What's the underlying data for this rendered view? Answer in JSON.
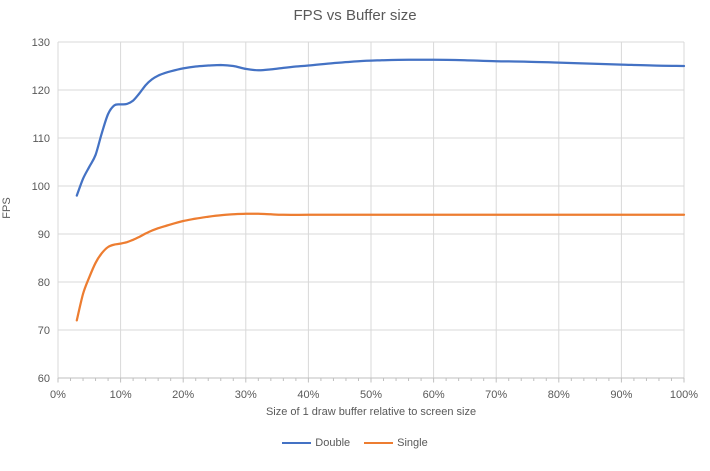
{
  "chart_data": {
    "type": "line",
    "title": "FPS vs Buffer size",
    "xlabel": "Size of 1 draw buffer relative to screen size",
    "ylabel": "FPS",
    "xlim": [
      0,
      100
    ],
    "ylim": [
      60,
      130
    ],
    "x_ticks": [
      0,
      10,
      20,
      30,
      40,
      50,
      60,
      70,
      80,
      90,
      100
    ],
    "x_tick_suffix": "%",
    "x_minor_tick_step": 2,
    "y_ticks": [
      60,
      70,
      80,
      90,
      100,
      110,
      120,
      130
    ],
    "grid": true,
    "legend_position": "bottom",
    "line_style": "smooth",
    "markers": false,
    "colors": {
      "grid": "#D9D9D9",
      "axis": "#BFBFBF",
      "text": "#595959",
      "background": "#FFFFFF"
    },
    "series": [
      {
        "name": "Double",
        "color": "#4472C4",
        "points": [
          [
            3,
            98
          ],
          [
            4,
            101.5
          ],
          [
            5,
            104
          ],
          [
            6,
            106.5
          ],
          [
            7,
            111
          ],
          [
            8,
            115
          ],
          [
            9,
            116.8
          ],
          [
            10,
            117
          ],
          [
            11,
            117.1
          ],
          [
            12,
            117.8
          ],
          [
            13,
            119.3
          ],
          [
            14,
            121
          ],
          [
            15,
            122.2
          ],
          [
            16,
            123
          ],
          [
            17,
            123.5
          ],
          [
            18,
            123.9
          ],
          [
            20,
            124.5
          ],
          [
            22,
            124.9
          ],
          [
            24,
            125.1
          ],
          [
            26,
            125.2
          ],
          [
            28,
            125
          ],
          [
            30,
            124.4
          ],
          [
            32,
            124.1
          ],
          [
            34,
            124.3
          ],
          [
            36,
            124.6
          ],
          [
            38,
            124.9
          ],
          [
            40,
            125.1
          ],
          [
            44,
            125.6
          ],
          [
            48,
            126
          ],
          [
            52,
            126.2
          ],
          [
            56,
            126.3
          ],
          [
            60,
            126.3
          ],
          [
            65,
            126.2
          ],
          [
            70,
            126
          ],
          [
            75,
            125.9
          ],
          [
            80,
            125.7
          ],
          [
            85,
            125.5
          ],
          [
            90,
            125.3
          ],
          [
            95,
            125.1
          ],
          [
            100,
            125
          ]
        ]
      },
      {
        "name": "Single",
        "color": "#ED7D31",
        "points": [
          [
            3,
            72
          ],
          [
            4,
            77.5
          ],
          [
            5,
            81
          ],
          [
            6,
            84
          ],
          [
            7,
            86
          ],
          [
            8,
            87.3
          ],
          [
            9,
            87.8
          ],
          [
            10,
            88
          ],
          [
            11,
            88.3
          ],
          [
            12,
            88.8
          ],
          [
            13,
            89.4
          ],
          [
            14,
            90.1
          ],
          [
            15,
            90.7
          ],
          [
            16,
            91.2
          ],
          [
            17,
            91.6
          ],
          [
            18,
            92
          ],
          [
            20,
            92.7
          ],
          [
            22,
            93.2
          ],
          [
            24,
            93.6
          ],
          [
            26,
            93.9
          ],
          [
            28,
            94.1
          ],
          [
            30,
            94.2
          ],
          [
            32,
            94.2
          ],
          [
            34,
            94.1
          ],
          [
            36,
            94
          ],
          [
            40,
            94
          ],
          [
            45,
            94
          ],
          [
            50,
            94
          ],
          [
            55,
            94
          ],
          [
            60,
            94
          ],
          [
            65,
            94
          ],
          [
            70,
            94
          ],
          [
            75,
            94
          ],
          [
            80,
            94
          ],
          [
            85,
            94
          ],
          [
            90,
            94
          ],
          [
            95,
            94
          ],
          [
            100,
            94
          ]
        ]
      }
    ]
  }
}
